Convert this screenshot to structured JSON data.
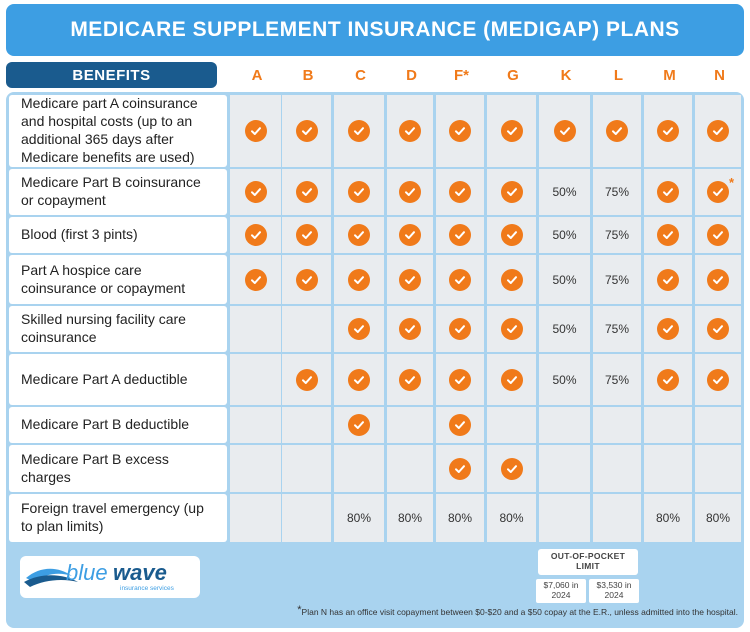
{
  "title": "MEDICARE SUPPLEMENT INSURANCE (MEDIGAP) PLANS",
  "header": {
    "benefits_label": "BENEFITS",
    "plans": [
      "A",
      "B",
      "C",
      "D",
      "F*",
      "G",
      "K",
      "L",
      "M",
      "N"
    ]
  },
  "accent_color": "#f07a1a",
  "rows": [
    {
      "benefit": "Medicare part A coinsurance and hospital costs (up to an additional 365 days after Medicare benefits are used)",
      "cells": [
        "check",
        "check",
        "check",
        "check",
        "check",
        "check",
        "check",
        "check",
        "check",
        "check"
      ]
    },
    {
      "benefit": "Medicare Part B coinsurance or copayment",
      "cells": [
        "check",
        "check",
        "check",
        "check",
        "check",
        "check",
        "50%",
        "75%",
        "check",
        "check*"
      ]
    },
    {
      "benefit": "Blood (first 3 pints)",
      "cells": [
        "check",
        "check",
        "check",
        "check",
        "check",
        "check",
        "50%",
        "75%",
        "check",
        "check"
      ]
    },
    {
      "benefit": "Part A hospice care coinsurance or copayment",
      "cells": [
        "check",
        "check",
        "check",
        "check",
        "check",
        "check",
        "50%",
        "75%",
        "check",
        "check"
      ]
    },
    {
      "benefit": "Skilled nursing facility care coinsurance",
      "cells": [
        "",
        "",
        "check",
        "check",
        "check",
        "check",
        "50%",
        "75%",
        "check",
        "check"
      ]
    },
    {
      "benefit": "Medicare Part A deductible",
      "cells": [
        "",
        "check",
        "check",
        "check",
        "check",
        "check",
        "50%",
        "75%",
        "check",
        "check"
      ]
    },
    {
      "benefit": "Medicare Part B deductible",
      "cells": [
        "",
        "",
        "check",
        "",
        "check",
        "",
        "",
        "",
        "",
        ""
      ]
    },
    {
      "benefit": "Medicare Part B excess charges",
      "cells": [
        "",
        "",
        "",
        "",
        "check",
        "check",
        "",
        "",
        "",
        ""
      ]
    },
    {
      "benefit": "Foreign travel emergency (up to plan limits)",
      "cells": [
        "",
        "",
        "80%",
        "80%",
        "80%",
        "80%",
        "",
        "",
        "80%",
        "80%"
      ]
    }
  ],
  "logo": {
    "word1": "blue",
    "word2": "wave",
    "tagline": "insurance services"
  },
  "out_of_pocket": {
    "label": "OUT-OF-POCKET LIMIT",
    "k_value": "$7,060 in 2024",
    "l_value": "$3,530 in 2024"
  },
  "footnote": "Plan N has an office visit copayment between $0-$20 and a $50 copay at the E.R., unless admitted into the hospital.",
  "footnote_mark": "*"
}
